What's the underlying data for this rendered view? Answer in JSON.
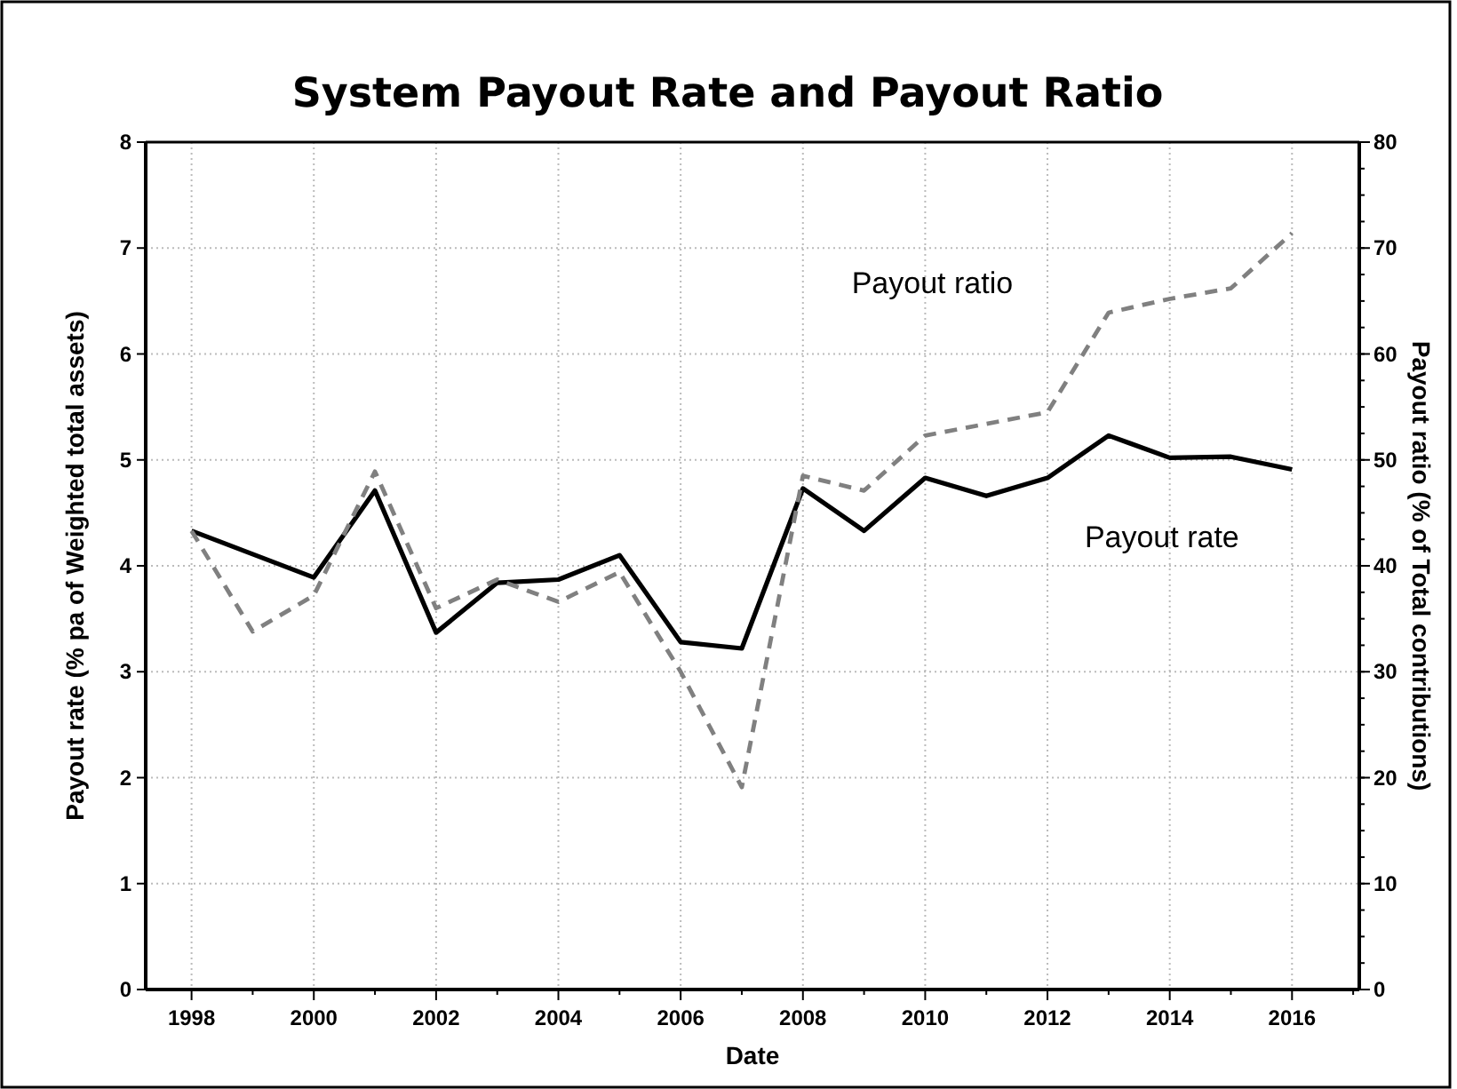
{
  "chart_data": {
    "type": "line",
    "title": "System Payout Rate and Payout Ratio",
    "xlabel": "Date",
    "ylabel": "Payout rate (% pa of Weighted total assets)",
    "y2label": "Payout ratio (% of Total contributions)",
    "x": [
      1998,
      1999,
      2000,
      2001,
      2002,
      2003,
      2004,
      2005,
      2006,
      2007,
      2008,
      2009,
      2010,
      2011,
      2012,
      2013,
      2014,
      2015,
      2016
    ],
    "series": [
      {
        "name": "Payout rate",
        "color": "#000000",
        "line_style": "solid",
        "values": [
          4.33,
          4.11,
          3.89,
          4.71,
          3.37,
          3.84,
          3.87,
          4.1,
          3.28,
          3.22,
          4.73,
          4.33,
          4.83,
          4.66,
          4.83,
          5.23,
          5.02,
          5.03,
          4.91
        ]
      },
      {
        "name": "Payout ratio",
        "color": "#808080",
        "line_style": "dashed",
        "axis": "y2",
        "values": [
          43.3,
          33.8,
          37.2,
          48.9,
          36,
          38.7,
          36.6,
          39.4,
          30,
          19.1,
          48.5,
          47.1,
          52.3,
          53.4,
          54.5,
          63.9,
          65.2,
          66.2,
          71.4
        ]
      }
    ],
    "xlim": [
      1997.25,
      2017.1
    ],
    "xticks": [
      1998,
      2000,
      2002,
      2004,
      2006,
      2008,
      2010,
      2012,
      2014,
      2016
    ],
    "ylim": [
      0,
      8
    ],
    "yticks": [
      0,
      1,
      2,
      3,
      4,
      5,
      6,
      7,
      8
    ],
    "y2lim": [
      0,
      80
    ],
    "y2ticks": [
      0,
      10,
      20,
      30,
      40,
      50,
      60,
      70,
      80
    ],
    "grid": true,
    "marker": "none"
  }
}
